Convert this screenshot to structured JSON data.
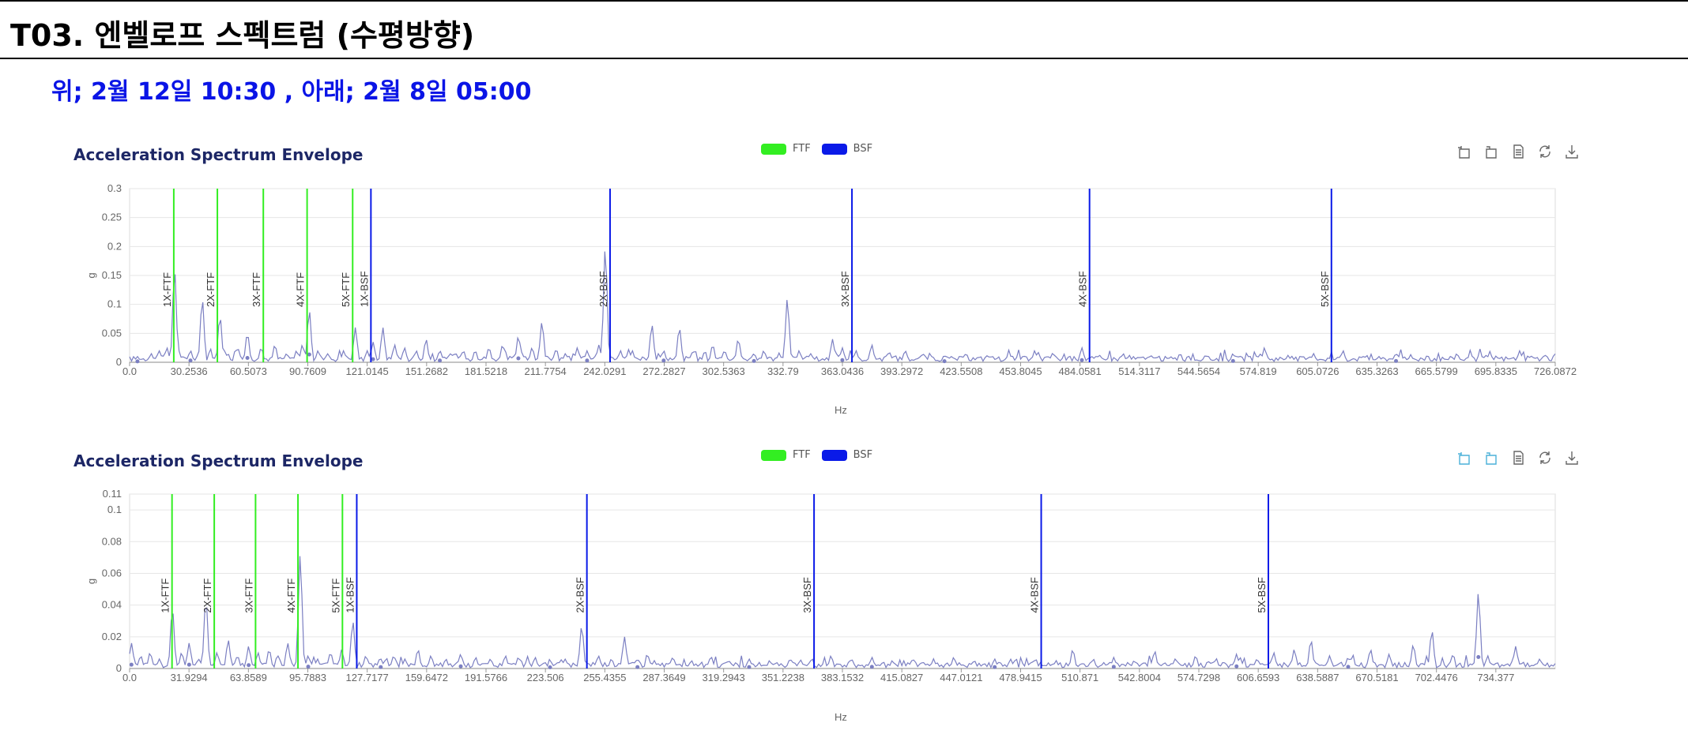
{
  "slide": {
    "title": "T03. 엔벨로프 스펙트럼 (수평방향)",
    "subtitle": "위; 2월 12일 10:30 ,  아래; 2월 8일 05:00"
  },
  "colors": {
    "ftf": "#33ee22",
    "bsf": "#0a1ae8",
    "spectrum": "#7b7fc2",
    "title": "#1d2766",
    "subtitle": "#0a14e6",
    "toolbox_active": "#4ab0d8",
    "toolbox_idle": "#666666"
  },
  "toolbox": {
    "icons": [
      "zoom-icon",
      "zoom-reset-icon",
      "data-view-icon",
      "restore-icon",
      "download-icon"
    ]
  },
  "chart_data": [
    {
      "type": "line",
      "title": "Acceleration Spectrum Envelope",
      "xlabel": "Hz",
      "ylabel": "g",
      "xlim": [
        0,
        726.0872
      ],
      "ylim": [
        0,
        0.3
      ],
      "grid": true,
      "legend": {
        "position": "top-center",
        "entries": [
          "FTF",
          "BSF"
        ]
      },
      "x_tick_labels": [
        "0.0",
        "30.2536",
        "60.5073",
        "90.7609",
        "121.0145",
        "151.2682",
        "181.5218",
        "211.7754",
        "242.0291",
        "272.2827",
        "302.5363",
        "332.79",
        "363.0436",
        "393.2972",
        "423.5508",
        "453.8045",
        "484.0581",
        "514.3117",
        "544.5654",
        "574.819",
        "605.0726",
        "635.3263",
        "665.5799",
        "695.8335",
        "726.0872"
      ],
      "y_ticks": [
        0,
        0.05,
        0.1,
        0.15,
        0.2,
        0.25,
        0.3
      ],
      "y_tick_labels": [
        "0",
        "0.05",
        "0.1",
        "0.15",
        "0.2",
        "0.25",
        "0.3"
      ],
      "markers": [
        {
          "series": "FTF",
          "label": "1X-FTF",
          "x": 22.5
        },
        {
          "series": "FTF",
          "label": "2X-FTF",
          "x": 44.7
        },
        {
          "series": "FTF",
          "label": "3X-FTF",
          "x": 68.1
        },
        {
          "series": "FTF",
          "label": "4X-FTF",
          "x": 90.4
        },
        {
          "series": "FTF",
          "label": "5X-FTF",
          "x": 113.6
        },
        {
          "series": "BSF",
          "label": "1X-BSF",
          "x": 122.9
        },
        {
          "series": "BSF",
          "label": "2X-BSF",
          "x": 244.7
        },
        {
          "series": "BSF",
          "label": "3X-BSF",
          "x": 367.9
        },
        {
          "series": "BSF",
          "label": "4X-BSF",
          "x": 488.9
        },
        {
          "series": "BSF",
          "label": "5X-BSF",
          "x": 612.1
        }
      ],
      "peaks": [
        [
          4,
          0.01
        ],
        [
          11,
          0.015
        ],
        [
          15,
          0.02
        ],
        [
          19,
          0.025
        ],
        [
          22.9,
          0.16
        ],
        [
          25,
          0.02
        ],
        [
          31,
          0.02
        ],
        [
          37,
          0.11
        ],
        [
          41,
          0.02
        ],
        [
          46,
          0.08
        ],
        [
          50,
          0.015
        ],
        [
          55,
          0.025
        ],
        [
          60,
          0.05
        ],
        [
          67,
          0.025
        ],
        [
          74,
          0.03
        ],
        [
          80,
          0.015
        ],
        [
          85,
          0.02
        ],
        [
          88,
          0.03
        ],
        [
          91.5,
          0.09
        ],
        [
          96,
          0.02
        ],
        [
          101,
          0.015
        ],
        [
          109,
          0.02
        ],
        [
          115,
          0.06
        ],
        [
          121,
          0.02
        ],
        [
          124,
          0.035
        ],
        [
          129,
          0.06
        ],
        [
          135,
          0.03
        ],
        [
          140,
          0.025
        ],
        [
          146,
          0.02
        ],
        [
          151,
          0.04
        ],
        [
          158,
          0.02
        ],
        [
          165,
          0.015
        ],
        [
          170,
          0.02
        ],
        [
          176,
          0.02
        ],
        [
          183,
          0.025
        ],
        [
          190,
          0.03
        ],
        [
          198,
          0.045
        ],
        [
          205,
          0.025
        ],
        [
          210,
          0.07
        ],
        [
          217,
          0.02
        ],
        [
          222,
          0.015
        ],
        [
          228,
          0.025
        ],
        [
          233,
          0.02
        ],
        [
          239,
          0.03
        ],
        [
          242.3,
          0.2
        ],
        [
          250,
          0.02
        ],
        [
          256,
          0.02
        ],
        [
          266,
          0.065
        ],
        [
          272,
          0.02
        ],
        [
          280,
          0.06
        ],
        [
          287,
          0.02
        ],
        [
          297,
          0.03
        ],
        [
          303,
          0.02
        ],
        [
          310,
          0.04
        ],
        [
          318,
          0.015
        ],
        [
          323,
          0.02
        ],
        [
          335,
          0.11
        ],
        [
          341,
          0.02
        ],
        [
          347,
          0.015
        ],
        [
          358,
          0.04
        ],
        [
          363,
          0.025
        ],
        [
          370,
          0.02
        ],
        [
          378,
          0.03
        ],
        [
          386,
          0.015
        ],
        [
          395,
          0.02
        ],
        [
          404,
          0.015
        ],
        [
          415,
          0.012
        ],
        [
          426,
          0.015
        ],
        [
          437,
          0.012
        ],
        [
          448,
          0.015
        ],
        [
          461,
          0.02
        ],
        [
          470,
          0.015
        ],
        [
          485,
          0.025
        ],
        [
          494,
          0.012
        ],
        [
          506,
          0.015
        ],
        [
          520,
          0.012
        ],
        [
          535,
          0.015
        ],
        [
          548,
          0.012
        ],
        [
          562,
          0.015
        ],
        [
          578,
          0.025
        ],
        [
          590,
          0.012
        ],
        [
          603,
          0.015
        ],
        [
          618,
          0.02
        ],
        [
          630,
          0.012
        ],
        [
          645,
          0.015
        ],
        [
          661,
          0.012
        ],
        [
          676,
          0.015
        ],
        [
          691,
          0.012
        ],
        [
          708,
          0.02
        ],
        [
          720,
          0.01
        ]
      ]
    },
    {
      "type": "line",
      "title": "Acceleration Spectrum Envelope",
      "xlabel": "Hz",
      "ylabel": "g",
      "xlim": [
        0,
        766.3
      ],
      "ylim": [
        0,
        0.11
      ],
      "grid": true,
      "legend": {
        "position": "top-center",
        "entries": [
          "FTF",
          "BSF"
        ]
      },
      "x_ticks": [
        0,
        31.9294,
        63.8589,
        95.7883,
        127.7177,
        159.6472,
        191.5766,
        223.506,
        255.4355,
        287.3649,
        319.2943,
        351.2238,
        383.1532,
        415.0827,
        447.0121,
        478.9415,
        510.871,
        542.8004,
        574.7298,
        606.6593,
        638.5887,
        670.5181,
        702.4476,
        734.377
      ],
      "x_tick_labels": [
        "0.0",
        "31.9294",
        "63.8589",
        "95.7883",
        "127.7177",
        "159.6472",
        "191.5766",
        "223.506",
        "255.4355",
        "287.3649",
        "319.2943",
        "351.2238",
        "383.1532",
        "415.0827",
        "447.0121",
        "478.9415",
        "510.871",
        "542.8004",
        "574.7298",
        "606.6593",
        "638.5887",
        "670.5181",
        "702.4476",
        "734.377"
      ],
      "y_ticks": [
        0,
        0.02,
        0.04,
        0.06,
        0.08,
        0.1,
        0.11
      ],
      "y_tick_labels": [
        "0",
        "0.02",
        "0.04",
        "0.06",
        "0.08",
        "0.1",
        "0.11"
      ],
      "markers": [
        {
          "series": "FTF",
          "label": "1X-FTF",
          "x": 22.8
        },
        {
          "series": "FTF",
          "label": "2X-FTF",
          "x": 45.5
        },
        {
          "series": "FTF",
          "label": "3X-FTF",
          "x": 67.7
        },
        {
          "series": "FTF",
          "label": "4X-FTF",
          "x": 90.5
        },
        {
          "series": "FTF",
          "label": "5X-FTF",
          "x": 114.4
        },
        {
          "series": "BSF",
          "label": "1X-BSF",
          "x": 122.1
        },
        {
          "series": "BSF",
          "label": "2X-BSF",
          "x": 245.8
        },
        {
          "series": "BSF",
          "label": "3X-BSF",
          "x": 367.9
        },
        {
          "series": "BSF",
          "label": "4X-BSF",
          "x": 490.0
        },
        {
          "series": "BSF",
          "label": "5X-BSF",
          "x": 612.1
        }
      ],
      "peaks": [
        [
          1,
          0.016
        ],
        [
          6,
          0.008
        ],
        [
          11,
          0.01
        ],
        [
          16,
          0.006
        ],
        [
          23,
          0.038
        ],
        [
          28,
          0.01
        ],
        [
          32,
          0.016
        ],
        [
          37,
          0.006
        ],
        [
          41,
          0.044
        ],
        [
          47,
          0.01
        ],
        [
          53,
          0.018
        ],
        [
          58,
          0.008
        ],
        [
          64,
          0.014
        ],
        [
          69,
          0.01
        ],
        [
          75,
          0.012
        ],
        [
          80,
          0.008
        ],
        [
          85,
          0.016
        ],
        [
          91.7,
          0.072
        ],
        [
          96,
          0.008
        ],
        [
          101,
          0.006
        ],
        [
          108,
          0.01
        ],
        [
          114,
          0.012
        ],
        [
          120,
          0.03
        ],
        [
          127,
          0.008
        ],
        [
          135,
          0.006
        ],
        [
          142,
          0.008
        ],
        [
          148,
          0.006
        ],
        [
          155,
          0.012
        ],
        [
          162,
          0.008
        ],
        [
          170,
          0.006
        ],
        [
          178,
          0.009
        ],
        [
          186,
          0.007
        ],
        [
          194,
          0.006
        ],
        [
          202,
          0.008
        ],
        [
          210,
          0.006
        ],
        [
          218,
          0.007
        ],
        [
          226,
          0.005
        ],
        [
          234,
          0.006
        ],
        [
          243,
          0.027
        ],
        [
          252,
          0.008
        ],
        [
          259,
          0.006
        ],
        [
          266,
          0.02
        ],
        [
          273,
          0.006
        ],
        [
          282,
          0.005
        ],
        [
          292,
          0.007
        ],
        [
          302,
          0.005
        ],
        [
          312,
          0.006
        ],
        [
          322,
          0.005
        ],
        [
          333,
          0.006
        ],
        [
          344,
          0.005
        ],
        [
          355,
          0.006
        ],
        [
          366,
          0.005
        ],
        [
          377,
          0.008
        ],
        [
          388,
          0.006
        ],
        [
          399,
          0.007
        ],
        [
          410,
          0.005
        ],
        [
          421,
          0.006
        ],
        [
          432,
          0.005
        ],
        [
          443,
          0.007
        ],
        [
          454,
          0.005
        ],
        [
          465,
          0.006
        ],
        [
          476,
          0.005
        ],
        [
          487,
          0.006
        ],
        [
          498,
          0.005
        ],
        [
          507,
          0.012
        ],
        [
          518,
          0.006
        ],
        [
          529,
          0.007
        ],
        [
          540,
          0.005
        ],
        [
          551,
          0.011
        ],
        [
          562,
          0.006
        ],
        [
          573,
          0.008
        ],
        [
          584,
          0.006
        ],
        [
          595,
          0.009
        ],
        [
          606,
          0.006
        ],
        [
          615,
          0.01
        ],
        [
          626,
          0.012
        ],
        [
          635,
          0.018
        ],
        [
          645,
          0.008
        ],
        [
          655,
          0.007
        ],
        [
          667,
          0.012
        ],
        [
          677,
          0.009
        ],
        [
          690,
          0.015
        ],
        [
          700,
          0.024
        ],
        [
          711,
          0.008
        ],
        [
          725,
          0.048
        ],
        [
          730,
          0.008
        ],
        [
          745,
          0.014
        ],
        [
          758,
          0.006
        ]
      ]
    }
  ]
}
